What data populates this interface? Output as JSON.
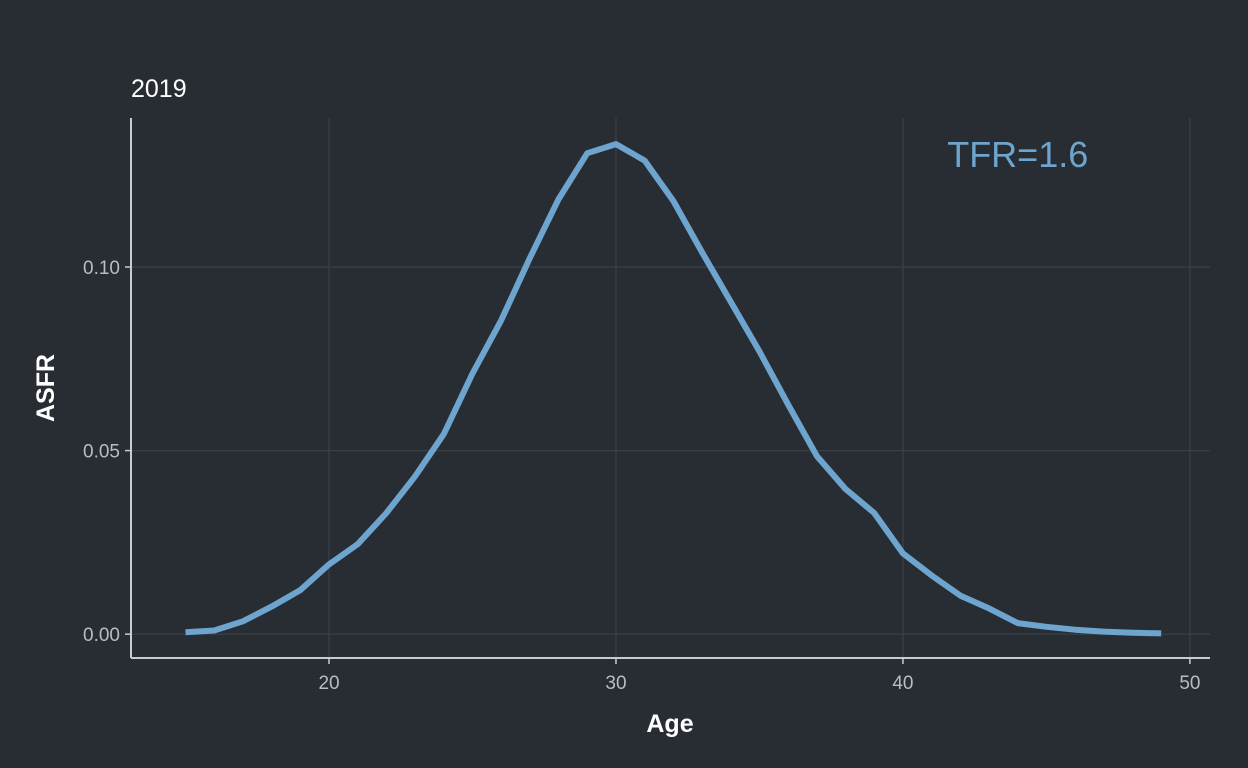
{
  "colors": {
    "background": "#282d34",
    "grid": "#3a3f47",
    "axis_line": "#c9cbcf",
    "tick_text": "#b9bcc2",
    "title_text": "#ffffff",
    "series": "#6ea5cf"
  },
  "chart_data": {
    "type": "line",
    "title": "2019",
    "xlabel": "Age",
    "ylabel": "ASFR",
    "xlim": [
      13.1,
      50.7
    ],
    "ylim": [
      -0.0065,
      0.1406
    ],
    "x_ticks": [
      20,
      30,
      40,
      50
    ],
    "y_ticks": [
      0.0,
      0.05,
      0.1
    ],
    "x_tick_labels": [
      "20",
      "30",
      "40",
      "50"
    ],
    "y_tick_labels": [
      "0.00",
      "0.05",
      "0.10"
    ],
    "grid": true,
    "annotation": {
      "text": "TFR=1.6",
      "x": 44,
      "y": 0.1305
    },
    "series": [
      {
        "x": [
          15,
          16,
          17,
          18,
          19,
          20,
          21,
          22,
          23,
          24,
          25,
          26,
          27,
          28,
          29,
          30,
          31,
          32,
          33,
          34,
          35,
          36,
          37,
          38,
          39,
          40,
          41,
          42,
          43,
          44,
          45,
          46,
          47,
          48,
          49
        ],
        "values": [
          0.0005,
          0.001,
          0.0035,
          0.0075,
          0.012,
          0.019,
          0.0245,
          0.033,
          0.043,
          0.0545,
          0.071,
          0.0855,
          0.1025,
          0.1185,
          0.131,
          0.1335,
          0.129,
          0.118,
          0.104,
          0.0905,
          0.077,
          0.0625,
          0.0485,
          0.0395,
          0.033,
          0.022,
          0.016,
          0.0105,
          0.007,
          0.003,
          0.002,
          0.0012,
          0.0007,
          0.0004,
          0.0002
        ]
      }
    ]
  }
}
